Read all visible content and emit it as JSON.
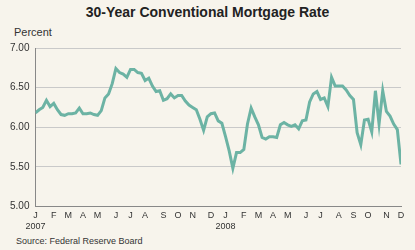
{
  "chart_data": {
    "type": "line",
    "title": "30-Year Conventional Mortgage Rate",
    "y_label": "Percent",
    "source": "Source: Federal Reserve Board",
    "years": [
      "2007",
      "2008"
    ],
    "categories": [
      "J",
      null,
      null,
      null,
      null,
      "F",
      null,
      null,
      null,
      "M",
      null,
      null,
      null,
      "A",
      null,
      null,
      null,
      "M",
      null,
      null,
      null,
      null,
      "J",
      null,
      null,
      null,
      "J",
      null,
      null,
      null,
      "A",
      null,
      null,
      null,
      null,
      "S",
      null,
      null,
      null,
      "O",
      null,
      null,
      null,
      "N",
      null,
      null,
      null,
      null,
      "D",
      null,
      null,
      null,
      "J",
      null,
      null,
      null,
      null,
      "F",
      null,
      null,
      null,
      "M",
      null,
      null,
      null,
      "A",
      null,
      null,
      null,
      "M",
      null,
      null,
      null,
      null,
      "J",
      null,
      null,
      null,
      "J",
      null,
      null,
      null,
      null,
      "A",
      null,
      null,
      null,
      "S",
      null,
      null,
      null,
      "O",
      null,
      null,
      null,
      null,
      "N",
      null,
      null,
      null,
      "D"
    ],
    "values": [
      6.18,
      6.22,
      6.25,
      6.34,
      6.26,
      6.3,
      6.22,
      6.16,
      6.15,
      6.17,
      6.17,
      6.18,
      6.24,
      6.17,
      6.17,
      6.18,
      6.16,
      6.15,
      6.21,
      6.37,
      6.42,
      6.55,
      6.74,
      6.69,
      6.67,
      6.63,
      6.73,
      6.73,
      6.69,
      6.68,
      6.59,
      6.62,
      6.52,
      6.45,
      6.46,
      6.34,
      6.36,
      6.42,
      6.37,
      6.4,
      6.4,
      6.33,
      6.28,
      6.25,
      6.22,
      6.1,
      5.96,
      6.13,
      6.17,
      6.18,
      6.08,
      6.05,
      5.88,
      5.7,
      5.48,
      5.68,
      5.68,
      5.72,
      6.04,
      6.24,
      6.13,
      6.03,
      5.87,
      5.85,
      5.88,
      5.88,
      5.87,
      6.03,
      6.06,
      6.03,
      6.01,
      6.03,
      5.98,
      6.08,
      6.09,
      6.32,
      6.42,
      6.45,
      6.35,
      6.37,
      6.26,
      6.63,
      6.52,
      6.52,
      6.52,
      6.47,
      6.4,
      6.35,
      5.93,
      5.78,
      6.09,
      6.1,
      5.94,
      6.46,
      6.04,
      6.46,
      6.2,
      6.14,
      6.04,
      5.97,
      5.53
    ],
    "color": "#6cb3a4",
    "ylim": [
      5,
      7
    ],
    "yticks": [
      {
        "value": 5,
        "label": "5.00"
      },
      {
        "value": 5.5,
        "label": "5.50"
      },
      {
        "value": 6,
        "label": "6.00"
      },
      {
        "value": 6.5,
        "label": "6.50"
      },
      {
        "value": 7,
        "label": "7.00"
      }
    ],
    "grid": true
  }
}
